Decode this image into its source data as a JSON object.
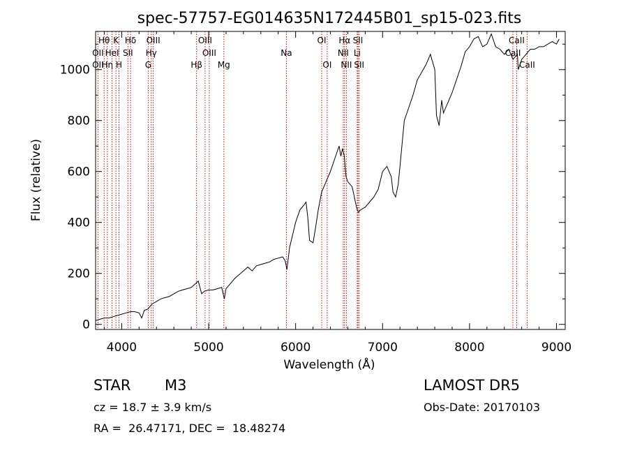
{
  "chart_data": {
    "type": "line",
    "title": "spec-57757-EG014635N172445B01_sp15-023.fits",
    "xlabel": "Wavelength (Å)",
    "ylabel": "Flux (relative)",
    "xlim": [
      3700,
      9100
    ],
    "ylim": [
      -20,
      1150
    ],
    "xticks": [
      4000,
      5000,
      6000,
      7000,
      8000,
      9000
    ],
    "yticks": [
      0,
      200,
      400,
      600,
      800,
      1000
    ],
    "grid": false,
    "line_color": "#000000",
    "marker_color": "#cc0000",
    "x": [
      3700,
      3750,
      3800,
      3850,
      3900,
      3950,
      4000,
      4050,
      4100,
      4150,
      4200,
      4230,
      4260,
      4300,
      4350,
      4400,
      4450,
      4500,
      4550,
      4600,
      4650,
      4700,
      4750,
      4800,
      4850,
      4880,
      4920,
      4950,
      5000,
      5050,
      5100,
      5150,
      5180,
      5200,
      5250,
      5300,
      5350,
      5400,
      5450,
      5500,
      5550,
      5600,
      5650,
      5700,
      5750,
      5800,
      5850,
      5880,
      5900,
      5930,
      6000,
      6050,
      6100,
      6120,
      6140,
      6160,
      6200,
      6230,
      6260,
      6300,
      6350,
      6400,
      6450,
      6480,
      6500,
      6520,
      6540,
      6560,
      6580,
      6600,
      6650,
      6700,
      6720,
      6750,
      6800,
      6850,
      6900,
      6950,
      7000,
      7050,
      7100,
      7120,
      7150,
      7180,
      7200,
      7250,
      7300,
      7350,
      7400,
      7450,
      7500,
      7550,
      7600,
      7620,
      7650,
      7680,
      7700,
      7750,
      7800,
      7850,
      7900,
      7950,
      8000,
      8050,
      8100,
      8150,
      8200,
      8250,
      8300,
      8350,
      8400,
      8450,
      8500,
      8550,
      8560,
      8600,
      8650,
      8700,
      8750,
      8800,
      8850,
      8900,
      8950,
      9000,
      9030
    ],
    "y": [
      15,
      20,
      25,
      25,
      30,
      35,
      40,
      45,
      50,
      50,
      45,
      25,
      55,
      60,
      80,
      90,
      100,
      105,
      110,
      120,
      130,
      135,
      140,
      145,
      160,
      170,
      120,
      130,
      135,
      135,
      140,
      145,
      100,
      140,
      160,
      180,
      195,
      210,
      225,
      210,
      230,
      235,
      240,
      245,
      255,
      260,
      265,
      250,
      215,
      300,
      400,
      450,
      470,
      480,
      420,
      330,
      320,
      380,
      450,
      520,
      560,
      600,
      650,
      680,
      700,
      660,
      690,
      660,
      580,
      560,
      540,
      460,
      440,
      450,
      460,
      480,
      500,
      530,
      600,
      620,
      580,
      520,
      500,
      550,
      620,
      800,
      850,
      900,
      960,
      990,
      1020,
      1060,
      1000,
      820,
      780,
      880,
      830,
      870,
      910,
      960,
      1010,
      1070,
      1090,
      1120,
      1130,
      1090,
      1100,
      1140,
      1090,
      1080,
      1060,
      1080,
      1040,
      1060,
      1000,
      1040,
      1060,
      1080,
      1080,
      1090,
      1090,
      1100,
      1110,
      1100,
      1120
    ],
    "line_markers": [
      {
        "label": "Hθ",
        "x": 3798,
        "row": 0
      },
      {
        "label": "OII",
        "x": 3727,
        "row": 1
      },
      {
        "label": "OII",
        "x": 3727,
        "row": 2
      },
      {
        "label": "K",
        "x": 3934,
        "row": 0
      },
      {
        "label": "HeI",
        "x": 3889,
        "row": 1
      },
      {
        "label": "Hη",
        "x": 3835,
        "row": 2
      },
      {
        "label": "Hδ",
        "x": 4102,
        "row": 0
      },
      {
        "label": "SII",
        "x": 4072,
        "row": 1
      },
      {
        "label": "H",
        "x": 3969,
        "row": 2
      },
      {
        "label": "OIII",
        "x": 4363,
        "row": 0
      },
      {
        "label": "Hγ",
        "x": 4340,
        "row": 1
      },
      {
        "label": "G",
        "x": 4305,
        "row": 2
      },
      {
        "label": "OIII",
        "x": 4959,
        "row": 0
      },
      {
        "label": "OIII",
        "x": 5007,
        "row": 1
      },
      {
        "label": "Hβ",
        "x": 4861,
        "row": 2
      },
      {
        "label": "Mg",
        "x": 5175,
        "row": 2
      },
      {
        "label": "Na",
        "x": 5894,
        "row": 1
      },
      {
        "label": "OI",
        "x": 6300,
        "row": 0
      },
      {
        "label": "OI",
        "x": 6363,
        "row": 2
      },
      {
        "label": "Hα",
        "x": 6563,
        "row": 0
      },
      {
        "label": "SII",
        "x": 6717,
        "row": 0
      },
      {
        "label": "NII",
        "x": 6548,
        "row": 1
      },
      {
        "label": "Li",
        "x": 6708,
        "row": 1
      },
      {
        "label": "NII",
        "x": 6584,
        "row": 2
      },
      {
        "label": "SII",
        "x": 6731,
        "row": 2
      },
      {
        "label": "CaII",
        "x": 8542,
        "row": 0
      },
      {
        "label": "CaII",
        "x": 8498,
        "row": 1
      },
      {
        "label": "CaII",
        "x": 8662,
        "row": 2
      }
    ],
    "marker_lines": [
      3727,
      3798,
      3835,
      3889,
      3934,
      3969,
      4072,
      4102,
      4305,
      4340,
      4363,
      4861,
      4959,
      5007,
      5175,
      5894,
      6300,
      6363,
      6548,
      6563,
      6584,
      6708,
      6717,
      6731,
      8498,
      8542,
      8662
    ]
  },
  "info": {
    "object_type": "STAR",
    "subclass": "M3",
    "survey": "LAMOST DR5",
    "cz": "cz = 18.7 ± 3.9 km/s",
    "obs_date": "Obs-Date: 20170103",
    "radec": "RA =  26.47171, DEC =  18.48274"
  }
}
